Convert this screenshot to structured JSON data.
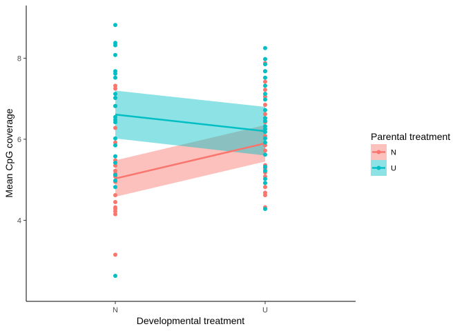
{
  "chart_data": {
    "type": "scatter",
    "title": "",
    "xlabel": "Developmental treatment",
    "ylabel": "Mean CpG coverage",
    "categories": [
      "N",
      "U"
    ],
    "ylim": [
      2.0,
      9.3
    ],
    "yticks": [
      4,
      6,
      8
    ],
    "grid": false,
    "legend": {
      "title": "Parental treatment",
      "placement": "right"
    },
    "series": [
      {
        "name": "N",
        "color": "#F8766D",
        "points": [
          {
            "x": "N",
            "y": 3.15
          },
          {
            "x": "N",
            "y": 4.15
          },
          {
            "x": "N",
            "y": 4.22
          },
          {
            "x": "N",
            "y": 4.28
          },
          {
            "x": "N",
            "y": 4.32
          },
          {
            "x": "N",
            "y": 4.45
          },
          {
            "x": "N",
            "y": 4.62
          },
          {
            "x": "N",
            "y": 4.95
          },
          {
            "x": "N",
            "y": 5.08
          },
          {
            "x": "N",
            "y": 5.15
          },
          {
            "x": "N",
            "y": 5.22
          },
          {
            "x": "N",
            "y": 5.35
          },
          {
            "x": "N",
            "y": 5.42
          },
          {
            "x": "N",
            "y": 5.48
          },
          {
            "x": "N",
            "y": 5.92
          },
          {
            "x": "N",
            "y": 6.28
          },
          {
            "x": "N",
            "y": 6.82
          },
          {
            "x": "N",
            "y": 7.02
          },
          {
            "x": "N",
            "y": 7.25
          },
          {
            "x": "N",
            "y": 7.32
          },
          {
            "x": "U",
            "y": 4.32
          },
          {
            "x": "U",
            "y": 4.62
          },
          {
            "x": "U",
            "y": 4.68
          },
          {
            "x": "U",
            "y": 4.82
          },
          {
            "x": "U",
            "y": 4.92
          },
          {
            "x": "U",
            "y": 5.08
          },
          {
            "x": "U",
            "y": 5.18
          },
          {
            "x": "U",
            "y": 5.28
          },
          {
            "x": "U",
            "y": 5.36
          },
          {
            "x": "U",
            "y": 5.72
          },
          {
            "x": "U",
            "y": 5.85
          },
          {
            "x": "U",
            "y": 6.08
          },
          {
            "x": "U",
            "y": 6.42
          },
          {
            "x": "U",
            "y": 6.52
          },
          {
            "x": "U",
            "y": 6.62
          },
          {
            "x": "U",
            "y": 6.85
          },
          {
            "x": "U",
            "y": 7.05
          },
          {
            "x": "U",
            "y": 7.22
          },
          {
            "x": "U",
            "y": 7.42
          },
          {
            "x": "U",
            "y": 7.68
          },
          {
            "x": "U",
            "y": 7.88
          }
        ],
        "fit": {
          "y_start": 5.03,
          "y_end": 5.9,
          "ci_start": [
            4.58,
            5.48
          ],
          "ci_end": [
            5.45,
            6.35
          ]
        }
      },
      {
        "name": "U",
        "color": "#00BFC4",
        "points": [
          {
            "x": "N",
            "y": 2.63
          },
          {
            "x": "N",
            "y": 4.82
          },
          {
            "x": "N",
            "y": 4.98
          },
          {
            "x": "N",
            "y": 5.12
          },
          {
            "x": "N",
            "y": 5.42
          },
          {
            "x": "N",
            "y": 5.58
          },
          {
            "x": "N",
            "y": 5.85
          },
          {
            "x": "N",
            "y": 6.02
          },
          {
            "x": "N",
            "y": 6.42
          },
          {
            "x": "N",
            "y": 6.48
          },
          {
            "x": "N",
            "y": 6.55
          },
          {
            "x": "N",
            "y": 6.82
          },
          {
            "x": "N",
            "y": 7.02
          },
          {
            "x": "N",
            "y": 7.12
          },
          {
            "x": "N",
            "y": 7.52
          },
          {
            "x": "N",
            "y": 7.62
          },
          {
            "x": "N",
            "y": 7.68
          },
          {
            "x": "N",
            "y": 8.08
          },
          {
            "x": "N",
            "y": 8.32
          },
          {
            "x": "N",
            "y": 8.38
          },
          {
            "x": "N",
            "y": 8.82
          },
          {
            "x": "U",
            "y": 4.28
          },
          {
            "x": "U",
            "y": 4.92
          },
          {
            "x": "U",
            "y": 5.02
          },
          {
            "x": "U",
            "y": 5.22
          },
          {
            "x": "U",
            "y": 5.32
          },
          {
            "x": "U",
            "y": 5.62
          },
          {
            "x": "U",
            "y": 5.92
          },
          {
            "x": "U",
            "y": 6.02
          },
          {
            "x": "U",
            "y": 6.18
          },
          {
            "x": "U",
            "y": 6.25
          },
          {
            "x": "U",
            "y": 6.32
          },
          {
            "x": "U",
            "y": 6.45
          },
          {
            "x": "U",
            "y": 6.52
          },
          {
            "x": "U",
            "y": 6.72
          },
          {
            "x": "U",
            "y": 6.98
          },
          {
            "x": "U",
            "y": 7.12
          },
          {
            "x": "U",
            "y": 7.32
          },
          {
            "x": "U",
            "y": 7.52
          },
          {
            "x": "U",
            "y": 7.68
          },
          {
            "x": "U",
            "y": 7.85
          },
          {
            "x": "U",
            "y": 7.98
          },
          {
            "x": "U",
            "y": 8.25
          }
        ],
        "fit": {
          "y_start": 6.61,
          "y_end": 6.2,
          "ci_start": [
            6.02,
            7.2
          ],
          "ci_end": [
            5.6,
            6.8
          ]
        }
      }
    ]
  }
}
